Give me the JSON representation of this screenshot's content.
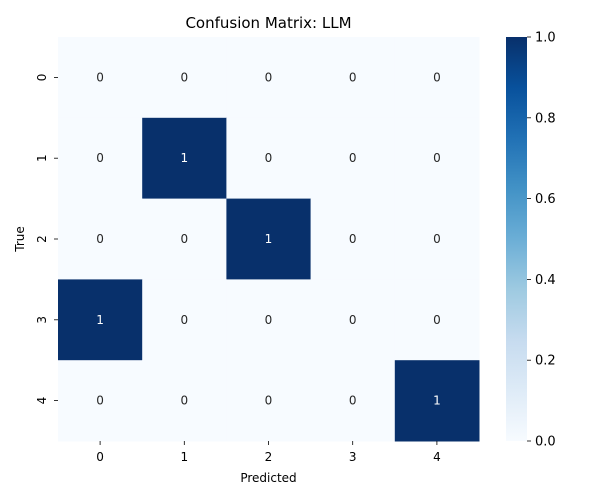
{
  "chart_data": {
    "type": "heatmap",
    "title": "Confusion Matrix: LLM",
    "xlabel": "Predicted",
    "ylabel": "True",
    "x_categories": [
      "0",
      "1",
      "2",
      "3",
      "4"
    ],
    "y_categories": [
      "0",
      "1",
      "2",
      "3",
      "4"
    ],
    "values": [
      [
        0,
        0,
        0,
        0,
        0
      ],
      [
        0,
        1,
        0,
        0,
        0
      ],
      [
        0,
        0,
        1,
        0,
        0
      ],
      [
        1,
        0,
        0,
        0,
        0
      ],
      [
        0,
        0,
        0,
        0,
        1
      ]
    ],
    "colorbar": {
      "min": 0.0,
      "max": 1.0,
      "ticks": [
        "0.0",
        "0.2",
        "0.4",
        "0.6",
        "0.8",
        "1.0"
      ],
      "colormap": "Blues",
      "color_low": "#f7fbff",
      "color_high": "#08306b"
    },
    "text_color_low": "#262626",
    "text_color_high": "#ffffff"
  }
}
